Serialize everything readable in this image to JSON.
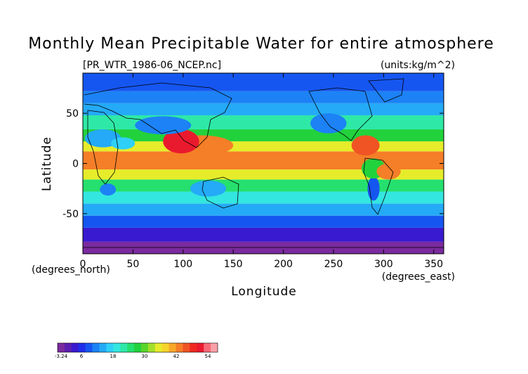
{
  "chart_data": {
    "type": "heatmap",
    "title": "Monthly Mean Precipitable Water for entire atmosphere",
    "file_label": "[PR_WTR_1986-06_NCEP.nc]",
    "units_label": "(units:kg/m^2)",
    "xlabel": "Longitude",
    "ylabel": "Latitude",
    "x_unit_label": "(degrees_east)",
    "y_unit_label": "(degrees_north)",
    "xlim": [
      0,
      360
    ],
    "ylim": [
      -90,
      90
    ],
    "x_ticks": [
      "0",
      "50",
      "100",
      "150",
      "200",
      "250",
      "300",
      "350"
    ],
    "y_ticks": [
      "50",
      "0",
      "-50"
    ],
    "colorbar": {
      "labels": [
        "-3.24",
        "6",
        "18",
        "30",
        "42",
        "54"
      ],
      "colors": [
        "#7a2a9e",
        "#5a1fb0",
        "#3a1ad0",
        "#1f2ee8",
        "#1656f0",
        "#1c82f5",
        "#24aaf6",
        "#2fd0f8",
        "#33e6e0",
        "#2ee8a8",
        "#25e06e",
        "#22d23c",
        "#5ad52a",
        "#a4e02a",
        "#e6ec2a",
        "#f6d42a",
        "#f8a82a",
        "#f57e28",
        "#f05424",
        "#ef2a22",
        "#ea1a2e",
        "#f66a78",
        "#f8a0a8"
      ]
    },
    "bands": [
      {
        "lat": [
          -90,
          -78
        ],
        "value": -1
      },
      {
        "lat": [
          -78,
          -64
        ],
        "value": 4
      },
      {
        "lat": [
          -64,
          -52
        ],
        "value": 9
      },
      {
        "lat": [
          -52,
          -40
        ],
        "value": 14
      },
      {
        "lat": [
          -40,
          -28
        ],
        "value": 19
      },
      {
        "lat": [
          -28,
          -16
        ],
        "value": 27
      },
      {
        "lat": [
          -16,
          -6
        ],
        "value": 36
      },
      {
        "lat": [
          -6,
          12
        ],
        "value": 46
      },
      {
        "lat": [
          12,
          22
        ],
        "value": 37
      },
      {
        "lat": [
          22,
          34
        ],
        "value": 29
      },
      {
        "lat": [
          34,
          48
        ],
        "value": 22
      },
      {
        "lat": [
          48,
          60
        ],
        "value": 16
      },
      {
        "lat": [
          60,
          72
        ],
        "value": 11
      },
      {
        "lat": [
          72,
          90
        ],
        "value": 8
      }
    ],
    "blobs": [
      {
        "lon": 118,
        "lat": 18,
        "rx": 32,
        "ry": 10,
        "value": 46
      },
      {
        "lon": 98,
        "lat": 22,
        "rx": 18,
        "ry": 12,
        "value": 52
      },
      {
        "lon": 282,
        "lat": 18,
        "rx": 14,
        "ry": 10,
        "value": 48
      },
      {
        "lon": 245,
        "lat": 40,
        "rx": 18,
        "ry": 10,
        "value": 12
      },
      {
        "lon": 80,
        "lat": 38,
        "rx": 28,
        "ry": 9,
        "value": 12
      },
      {
        "lon": 20,
        "lat": 25,
        "rx": 18,
        "ry": 9,
        "value": 14
      },
      {
        "lon": 40,
        "lat": 20,
        "rx": 12,
        "ry": 6,
        "value": 18
      },
      {
        "lon": 125,
        "lat": -25,
        "rx": 18,
        "ry": 8,
        "value": 14
      },
      {
        "lon": 25,
        "lat": -26,
        "rx": 8,
        "ry": 6,
        "value": 11
      },
      {
        "lon": 290,
        "lat": -25,
        "rx": 6,
        "ry": 12,
        "value": 8
      },
      {
        "lon": 290,
        "lat": -5,
        "rx": 12,
        "ry": 10,
        "value": 28
      },
      {
        "lon": 305,
        "lat": -8,
        "rx": 12,
        "ry": 8,
        "value": 44
      }
    ]
  }
}
